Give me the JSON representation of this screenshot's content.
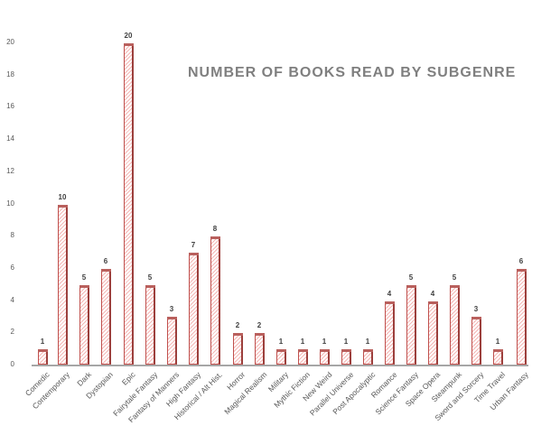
{
  "chart_data": {
    "type": "bar",
    "title": "NUMBER OF BOOKS READ BY SUBGENRE",
    "xlabel": "",
    "ylabel": "",
    "ylim": [
      0,
      20
    ],
    "yticks": [
      0,
      2,
      4,
      6,
      8,
      10,
      12,
      14,
      16,
      18,
      20
    ],
    "grid": false,
    "legend": null,
    "data_labels": true,
    "categories": [
      "Comedic",
      "Contemporary",
      "Dark",
      "Dystopian",
      "Epic",
      "Fairytale Fantasy",
      "Fantasy of Manners",
      "High Fantasy",
      "Historical / Alt Hist.",
      "Horror",
      "Magical Realism",
      "Military",
      "Mythic Fiction",
      "New Weird",
      "Parallel Universe",
      "Post Apocalyptic",
      "Romance",
      "Science Fantasy",
      "Space Opera",
      "Steampunk",
      "Sword and Sorcery",
      "Time Travel",
      "Urban Fantasy"
    ],
    "values": [
      1,
      10,
      5,
      6,
      20,
      5,
      3,
      7,
      8,
      2,
      2,
      1,
      1,
      1,
      1,
      1,
      4,
      5,
      4,
      5,
      3,
      1,
      6
    ],
    "colors": {
      "bar_fill": "#f4b6b4",
      "bar_edge": "#c0504d",
      "title": "#7f7f7f",
      "axis": "#a6a6a6"
    }
  },
  "labels": {
    "title": "NUMBER OF BOOKS READ BY SUBGENRE",
    "yticks": [
      "0",
      "2",
      "4",
      "6",
      "8",
      "10",
      "12",
      "14",
      "16",
      "18",
      "20"
    ],
    "categories": [
      "Comedic",
      "Contemporary",
      "Dark",
      "Dystopian",
      "Epic",
      "Fairytale Fantasy",
      "Fantasy of Manners",
      "High Fantasy",
      "Historical / Alt Hist.",
      "Horror",
      "Magical Realism",
      "Military",
      "Mythic Fiction",
      "New Weird",
      "Parallel Universe",
      "Post Apocalyptic",
      "Romance",
      "Science Fantasy",
      "Space Opera",
      "Steampunk",
      "Sword and Sorcery",
      "Time Travel",
      "Urban Fantasy"
    ],
    "values": [
      "1",
      "10",
      "5",
      "6",
      "20",
      "5",
      "3",
      "7",
      "8",
      "2",
      "2",
      "1",
      "1",
      "1",
      "1",
      "1",
      "4",
      "5",
      "4",
      "5",
      "3",
      "1",
      "6"
    ]
  }
}
